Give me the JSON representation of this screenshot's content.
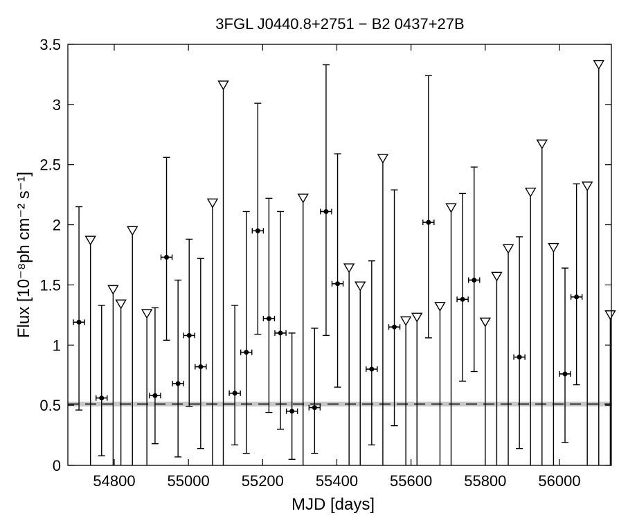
{
  "chart_data": {
    "type": "scatter",
    "title": "3FGL J0440.8+2751 − B2 0437+27B",
    "xlabel": "MJD [days]",
    "ylabel": "Flux [10⁻⁸ph cm⁻² s⁻¹]",
    "xlim": [
      54675,
      56140
    ],
    "ylim": [
      0,
      3.5
    ],
    "xticks": [
      54800,
      55000,
      55200,
      55400,
      55600,
      55800,
      56000
    ],
    "yticks": [
      0,
      0.5,
      1,
      1.5,
      2,
      2.5,
      3,
      3.5
    ],
    "ytick_labels": [
      "0",
      "0.5",
      "1",
      "1.5",
      "2",
      "2.5",
      "3",
      "3.5"
    ],
    "time_bin_halfwidth": 15,
    "reference_line": {
      "y": 0.51,
      "style": "dashed",
      "band": [
        0.49,
        0.53
      ],
      "band_color": "#c8c8c8"
    },
    "detections": [
      {
        "x": 54705,
        "y": 1.19,
        "ylo": 0.46,
        "yhi": 2.15
      },
      {
        "x": 54766,
        "y": 0.56,
        "ylo": 0.08,
        "yhi": 1.33
      },
      {
        "x": 54910,
        "y": 0.58,
        "ylo": 0.18,
        "yhi": 1.31
      },
      {
        "x": 54941,
        "y": 1.73,
        "ylo": 1.04,
        "yhi": 2.56
      },
      {
        "x": 54972,
        "y": 0.68,
        "ylo": 0.07,
        "yhi": 1.54
      },
      {
        "x": 55002,
        "y": 1.08,
        "ylo": 0.49,
        "yhi": 1.88
      },
      {
        "x": 55033,
        "y": 0.82,
        "ylo": 0.14,
        "yhi": 1.72
      },
      {
        "x": 55125,
        "y": 0.6,
        "ylo": 0.17,
        "yhi": 1.33
      },
      {
        "x": 55156,
        "y": 0.94,
        "ylo": 0.1,
        "yhi": 2.11
      },
      {
        "x": 55187,
        "y": 1.95,
        "ylo": 1.09,
        "yhi": 3.01
      },
      {
        "x": 55217,
        "y": 1.22,
        "ylo": 0.44,
        "yhi": 2.22
      },
      {
        "x": 55248,
        "y": 1.1,
        "ylo": 0.3,
        "yhi": 2.11
      },
      {
        "x": 55279,
        "y": 0.45,
        "ylo": 0.05,
        "yhi": 1.1
      },
      {
        "x": 55340,
        "y": 0.48,
        "ylo": 0.1,
        "yhi": 1.14
      },
      {
        "x": 55371,
        "y": 2.11,
        "ylo": 1.08,
        "yhi": 3.33
      },
      {
        "x": 55402,
        "y": 1.51,
        "ylo": 0.65,
        "yhi": 2.59
      },
      {
        "x": 55494,
        "y": 0.8,
        "ylo": 0.17,
        "yhi": 1.7
      },
      {
        "x": 55555,
        "y": 1.15,
        "ylo": 0.33,
        "yhi": 2.29
      },
      {
        "x": 55647,
        "y": 2.02,
        "ylo": 1.06,
        "yhi": 3.24
      },
      {
        "x": 55739,
        "y": 1.38,
        "ylo": 0.7,
        "yhi": 2.26
      },
      {
        "x": 55770,
        "y": 1.54,
        "ylo": 0.78,
        "yhi": 2.48
      },
      {
        "x": 55892,
        "y": 0.9,
        "ylo": 0.14,
        "yhi": 1.9
      },
      {
        "x": 56015,
        "y": 0.76,
        "ylo": 0.19,
        "yhi": 1.64
      },
      {
        "x": 56046,
        "y": 1.4,
        "ylo": 0.67,
        "yhi": 2.34
      }
    ],
    "upper_limits": [
      {
        "x": 54736,
        "y": 1.87
      },
      {
        "x": 54797,
        "y": 1.46
      },
      {
        "x": 54818,
        "y": 1.34
      },
      {
        "x": 54849,
        "y": 1.95
      },
      {
        "x": 54888,
        "y": 1.26
      },
      {
        "x": 55065,
        "y": 2.18
      },
      {
        "x": 55094,
        "y": 3.16
      },
      {
        "x": 55309,
        "y": 2.22
      },
      {
        "x": 55433,
        "y": 1.64
      },
      {
        "x": 55463,
        "y": 1.49
      },
      {
        "x": 55524,
        "y": 2.55
      },
      {
        "x": 55586,
        "y": 1.2
      },
      {
        "x": 55616,
        "y": 1.23
      },
      {
        "x": 55678,
        "y": 1.32
      },
      {
        "x": 55708,
        "y": 2.14
      },
      {
        "x": 55800,
        "y": 1.19
      },
      {
        "x": 55831,
        "y": 1.57
      },
      {
        "x": 55862,
        "y": 1.8
      },
      {
        "x": 55922,
        "y": 2.27
      },
      {
        "x": 55953,
        "y": 2.67
      },
      {
        "x": 55984,
        "y": 1.81
      },
      {
        "x": 56075,
        "y": 2.32
      },
      {
        "x": 56106,
        "y": 3.33
      },
      {
        "x": 56137,
        "y": 1.25
      }
    ]
  }
}
